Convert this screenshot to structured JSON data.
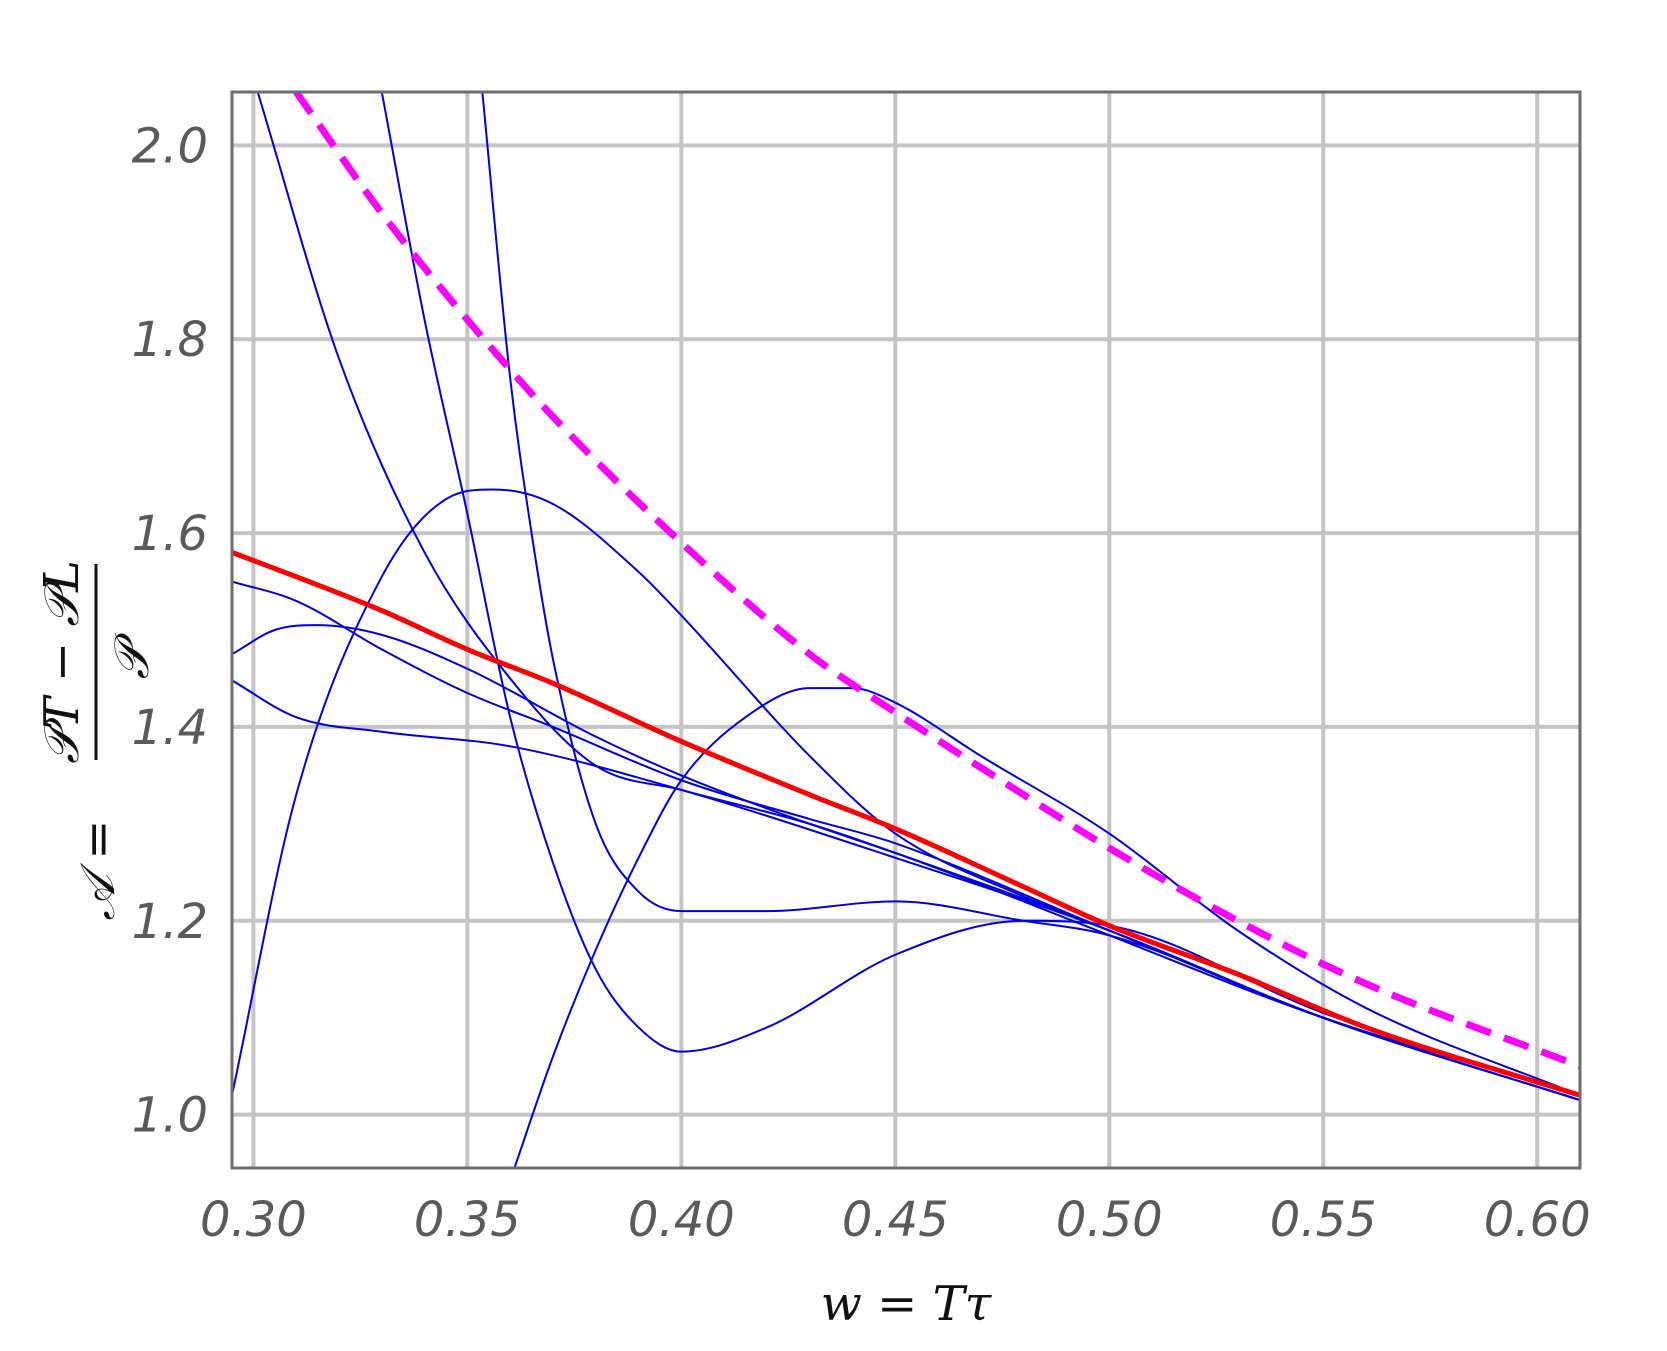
{
  "chart_data": {
    "type": "line",
    "xlabel": "w = Tτ",
    "ylabel": "𝒜 = (𝒫T − 𝒫L) / 𝒫",
    "ylabel_parts": {
      "lhs": "𝒜 =",
      "numerator": "𝒫T − 𝒫L",
      "denominator": "𝒫"
    },
    "xlim": [
      0.295,
      0.61
    ],
    "ylim": [
      0.945,
      2.055
    ],
    "xticks": [
      "0.30",
      "0.35",
      "0.40",
      "0.45",
      "0.50",
      "0.55",
      "0.60"
    ],
    "yticks": [
      "1.0",
      "1.2",
      "1.4",
      "1.6",
      "1.8",
      "2.0"
    ],
    "grid": true,
    "colors": {
      "reference": "#ff0000",
      "asymptotic": "#ff00ff",
      "truncations": "#0000e6",
      "grid": "#c4c4c4"
    },
    "series": [
      {
        "style": "solid-thick",
        "color": "#ff0000",
        "x": [
          0.295,
          0.31,
          0.33,
          0.35,
          0.37,
          0.4,
          0.43,
          0.45,
          0.48,
          0.5,
          0.53,
          0.56,
          0.61
        ],
        "y": [
          1.58,
          1.555,
          1.52,
          1.48,
          1.445,
          1.385,
          1.33,
          1.295,
          1.235,
          1.195,
          1.145,
          1.09,
          1.02
        ]
      },
      {
        "style": "dashed",
        "color": "#ff00ff",
        "x": [
          0.31,
          0.33,
          0.35,
          0.37,
          0.4,
          0.43,
          0.45,
          0.48,
          0.5,
          0.53,
          0.56,
          0.61
        ],
        "y": [
          2.055,
          1.93,
          1.82,
          1.72,
          1.59,
          1.475,
          1.415,
          1.33,
          1.275,
          1.2,
          1.135,
          1.05
        ]
      },
      {
        "style": "thin",
        "color": "#0000e6",
        "x": [
          0.295,
          0.31,
          0.33,
          0.35,
          0.37,
          0.4,
          0.43,
          0.45,
          0.5,
          0.55,
          0.61
        ],
        "y": [
          1.55,
          1.53,
          1.48,
          1.435,
          1.4,
          1.345,
          1.305,
          1.28,
          1.19,
          1.1,
          1.015
        ]
      },
      {
        "style": "thin",
        "color": "#0000e6",
        "x": [
          0.295,
          0.305,
          0.315,
          0.33,
          0.35,
          0.38,
          0.4,
          0.43,
          0.45,
          0.5,
          0.55,
          0.61
        ],
        "y": [
          1.475,
          1.5,
          1.505,
          1.495,
          1.46,
          1.39,
          1.35,
          1.3,
          1.27,
          1.19,
          1.1,
          1.015
        ]
      },
      {
        "style": "thin",
        "color": "#0000e6",
        "x": [
          0.295,
          0.31,
          0.33,
          0.36,
          0.4,
          0.45,
          0.5,
          0.55,
          0.61
        ],
        "y": [
          1.448,
          1.41,
          1.395,
          1.38,
          1.335,
          1.265,
          1.19,
          1.1,
          1.015
        ]
      },
      {
        "style": "thin",
        "color": "#0000e6",
        "x": [
          0.295,
          0.31,
          0.33,
          0.345,
          0.356,
          0.37,
          0.39,
          0.4,
          0.43,
          0.45,
          0.48,
          0.5,
          0.55,
          0.61
        ],
        "y": [
          1.02,
          1.33,
          1.555,
          1.635,
          1.645,
          1.63,
          1.56,
          1.515,
          1.37,
          1.29,
          1.225,
          1.19,
          1.1,
          1.015
        ]
      },
      {
        "style": "thin",
        "color": "#0000e6",
        "x": [
          0.301,
          0.32,
          0.34,
          0.36,
          0.38,
          0.4,
          0.43,
          0.45,
          0.48,
          0.5,
          0.55,
          0.61
        ],
        "y": [
          2.055,
          1.78,
          1.58,
          1.45,
          1.36,
          1.335,
          1.3,
          1.27,
          1.22,
          1.185,
          1.1,
          1.02
        ]
      },
      {
        "style": "thin",
        "color": "#0000e6",
        "x": [
          0.33,
          0.34,
          0.35,
          0.36,
          0.37,
          0.38,
          0.39,
          0.4,
          0.42,
          0.45,
          0.48,
          0.5,
          0.55,
          0.61
        ],
        "y": [
          2.055,
          1.82,
          1.62,
          1.41,
          1.26,
          1.15,
          1.09,
          1.065,
          1.09,
          1.165,
          1.2,
          1.195,
          1.105,
          1.02
        ]
      },
      {
        "style": "thin",
        "color": "#0000e6",
        "x": [
          0.3535,
          0.36,
          0.365,
          0.37,
          0.38,
          0.39,
          0.4,
          0.42,
          0.45,
          0.48,
          0.5,
          0.55,
          0.61
        ],
        "y": [
          2.055,
          1.76,
          1.6,
          1.47,
          1.3,
          1.23,
          1.21,
          1.21,
          1.22,
          1.2,
          1.185,
          1.1,
          1.02
        ]
      },
      {
        "style": "thin",
        "color": "#0000e6",
        "x": [
          0.361,
          0.37,
          0.38,
          0.39,
          0.4,
          0.415,
          0.43,
          0.44,
          0.45,
          0.47,
          0.5,
          0.53,
          0.56,
          0.61
        ],
        "y": [
          0.945,
          1.06,
          1.17,
          1.265,
          1.345,
          1.41,
          1.44,
          1.44,
          1.425,
          1.37,
          1.29,
          1.19,
          1.11,
          1.02
        ]
      }
    ]
  }
}
